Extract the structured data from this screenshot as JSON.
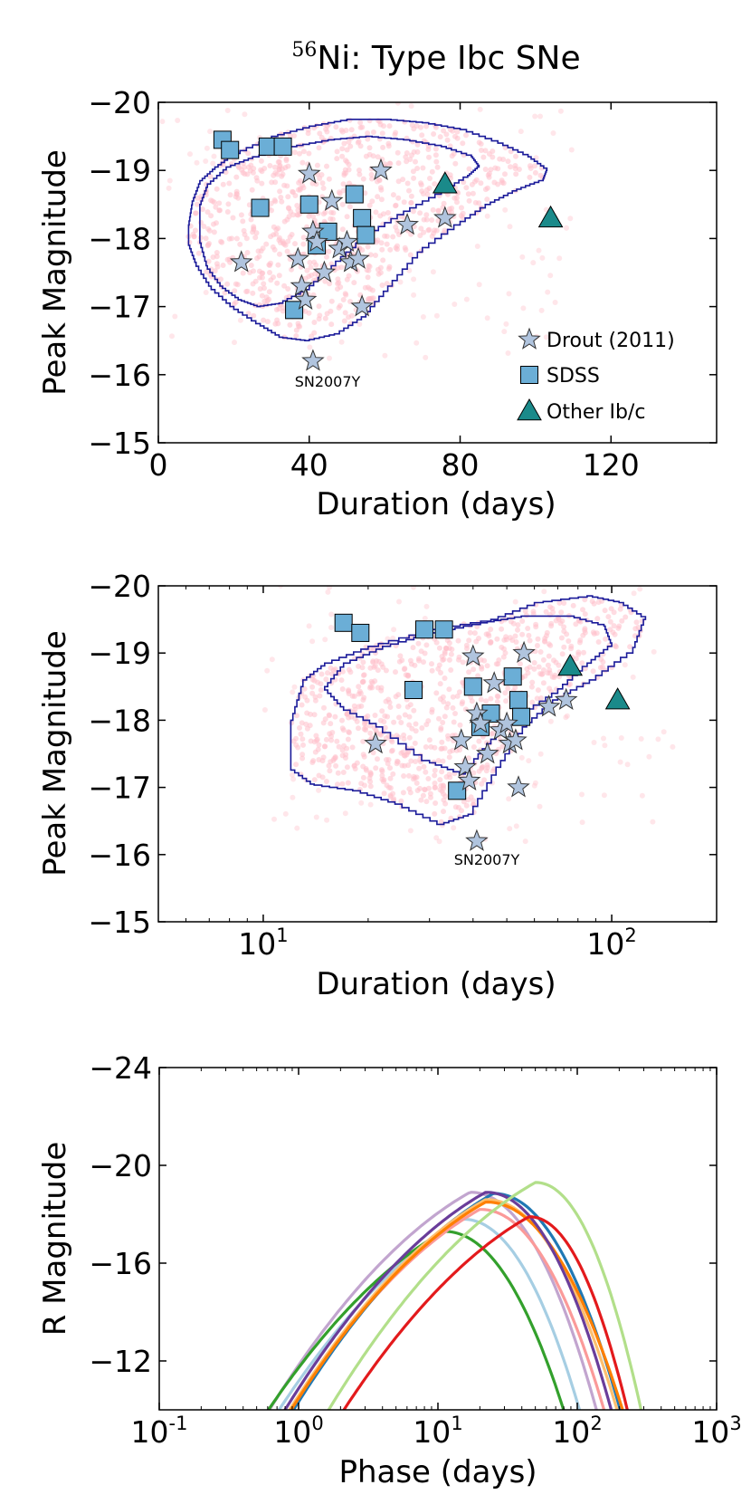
{
  "figure": {
    "title_prefix": "56",
    "title_text": "Ni: Type Ibc SNe"
  },
  "colors": {
    "sim": "#ffc0cb",
    "contour": "#1a1a99",
    "drout": "#b0c4de",
    "sdss": "#6baed6",
    "other": "#1a8a8a"
  },
  "chart_data": [
    {
      "type": "scatter",
      "name": "linear-duration-panel",
      "xlabel": "Duration (days)",
      "ylabel": "Peak Magnitude",
      "xlim": [
        0,
        148
      ],
      "ylim": [
        -15,
        -20
      ],
      "xticks": [
        0,
        40,
        80,
        120
      ],
      "yticks": [
        -20,
        -19,
        -18,
        -17,
        -16,
        -15
      ],
      "xscale": "linear",
      "legend": {
        "position": "bottom-right",
        "entries": [
          {
            "label": "Drout (2011)",
            "marker": "star"
          },
          {
            "label": "SDSS",
            "marker": "square"
          },
          {
            "label": "Other Ib/c",
            "marker": "triangle"
          }
        ]
      },
      "annotation": {
        "text": "SN2007Y",
        "x": 41,
        "y": -16.2
      },
      "contour_outer": [
        [
          8,
          -18.2
        ],
        [
          9,
          -18.55
        ],
        [
          11,
          -18.85
        ],
        [
          15,
          -19.05
        ],
        [
          20,
          -19.25
        ],
        [
          30,
          -19.5
        ],
        [
          40,
          -19.65
        ],
        [
          50,
          -19.75
        ],
        [
          60,
          -19.75
        ],
        [
          70,
          -19.7
        ],
        [
          80,
          -19.6
        ],
        [
          90,
          -19.4
        ],
        [
          98,
          -19.2
        ],
        [
          103,
          -19.0
        ],
        [
          102,
          -18.85
        ],
        [
          95,
          -18.7
        ],
        [
          88,
          -18.5
        ],
        [
          80,
          -18.2
        ],
        [
          70,
          -17.8
        ],
        [
          62,
          -17.3
        ],
        [
          55,
          -16.85
        ],
        [
          48,
          -16.6
        ],
        [
          40,
          -16.5
        ],
        [
          33,
          -16.55
        ],
        [
          27,
          -16.75
        ],
        [
          20,
          -17.0
        ],
        [
          14,
          -17.3
        ],
        [
          10,
          -17.65
        ],
        [
          8,
          -17.95
        ]
      ],
      "contour_inner": [
        [
          11,
          -18.5
        ],
        [
          13,
          -18.8
        ],
        [
          18,
          -19.05
        ],
        [
          25,
          -19.2
        ],
        [
          35,
          -19.35
        ],
        [
          45,
          -19.45
        ],
        [
          55,
          -19.5
        ],
        [
          65,
          -19.45
        ],
        [
          75,
          -19.35
        ],
        [
          83,
          -19.2
        ],
        [
          85,
          -19.05
        ],
        [
          82,
          -18.9
        ],
        [
          75,
          -18.65
        ],
        [
          65,
          -18.35
        ],
        [
          55,
          -18.0
        ],
        [
          47,
          -17.6
        ],
        [
          40,
          -17.25
        ],
        [
          33,
          -17.05
        ],
        [
          27,
          -17.0
        ],
        [
          22,
          -17.1
        ],
        [
          17,
          -17.3
        ],
        [
          13,
          -17.6
        ],
        [
          11,
          -18.0
        ]
      ],
      "drout": {
        "x": [
          22,
          37,
          38,
          39,
          40,
          41,
          42,
          44,
          46,
          48,
          50,
          51,
          53,
          54,
          59,
          66,
          76
        ],
        "y": [
          -17.65,
          -17.7,
          -17.3,
          -17.1,
          -18.95,
          -18.1,
          -17.95,
          -17.5,
          -18.55,
          -17.85,
          -17.95,
          -17.65,
          -17.7,
          -17.0,
          -19.0,
          -18.2,
          -18.3
        ]
      },
      "sdss": {
        "x": [
          17,
          19,
          27,
          29,
          33,
          40,
          42,
          45,
          52,
          54,
          55,
          36
        ],
        "y": [
          -19.45,
          -19.3,
          -18.45,
          -19.35,
          -19.35,
          -18.5,
          -17.9,
          -18.1,
          -18.65,
          -18.3,
          -18.05,
          -16.95
        ]
      },
      "other": {
        "x": [
          76,
          104
        ],
        "y": [
          -18.8,
          -18.3
        ]
      }
    },
    {
      "type": "scatter",
      "name": "log-duration-panel",
      "xlabel": "Duration (days)",
      "ylabel": "Peak Magnitude",
      "xlim": [
        5,
        200
      ],
      "ylim": [
        -15,
        -20
      ],
      "xticks": [
        10,
        100
      ],
      "xticklabels": [
        {
          "base": "10",
          "exp": "1"
        },
        {
          "base": "10",
          "exp": "2"
        }
      ],
      "yticks": [
        -20,
        -19,
        -18,
        -17,
        -16,
        -15
      ],
      "xscale": "log",
      "annotation": {
        "text": "SN2007Y",
        "x": 41,
        "y": -16.2
      },
      "contour_outer": [
        [
          12,
          -17.3
        ],
        [
          12,
          -18.0
        ],
        [
          13,
          -18.6
        ],
        [
          15,
          -18.85
        ],
        [
          20,
          -19.1
        ],
        [
          30,
          -19.35
        ],
        [
          45,
          -19.5
        ],
        [
          60,
          -19.75
        ],
        [
          85,
          -19.85
        ],
        [
          105,
          -19.75
        ],
        [
          125,
          -19.5
        ],
        [
          115,
          -19.0
        ],
        [
          90,
          -18.6
        ],
        [
          70,
          -18.3
        ],
        [
          57,
          -17.9
        ],
        [
          48,
          -17.3
        ],
        [
          40,
          -16.6
        ],
        [
          33,
          -16.45
        ],
        [
          25,
          -16.75
        ],
        [
          19,
          -16.95
        ],
        [
          14,
          -17.05
        ]
      ],
      "contour_inner": [
        [
          15,
          -18.5
        ],
        [
          17,
          -18.85
        ],
        [
          22,
          -19.1
        ],
        [
          30,
          -19.3
        ],
        [
          42,
          -19.45
        ],
        [
          55,
          -19.55
        ],
        [
          75,
          -19.55
        ],
        [
          95,
          -19.4
        ],
        [
          100,
          -19.1
        ],
        [
          85,
          -18.8
        ],
        [
          70,
          -18.4
        ],
        [
          55,
          -18.05
        ],
        [
          45,
          -17.65
        ],
        [
          38,
          -17.2
        ],
        [
          30,
          -17.4
        ],
        [
          22,
          -17.9
        ],
        [
          17,
          -18.2
        ]
      ],
      "drout": {
        "x": [
          21,
          37,
          38,
          39,
          40,
          41,
          42,
          44,
          46,
          48,
          50,
          51,
          53,
          54,
          56,
          66,
          74
        ],
        "y": [
          -17.65,
          -17.7,
          -17.3,
          -17.1,
          -18.95,
          -18.1,
          -17.95,
          -17.5,
          -18.55,
          -17.85,
          -17.95,
          -17.65,
          -17.7,
          -17.0,
          -19.0,
          -18.2,
          -18.3
        ]
      },
      "sdss": {
        "x": [
          17,
          19,
          27,
          29,
          33,
          40,
          42,
          45,
          52,
          54,
          55,
          36
        ],
        "y": [
          -19.45,
          -19.3,
          -18.45,
          -19.35,
          -19.35,
          -18.5,
          -17.9,
          -18.1,
          -18.65,
          -18.3,
          -18.05,
          -16.95
        ]
      },
      "other": {
        "x": [
          76,
          104
        ],
        "y": [
          -18.8,
          -18.3
        ]
      }
    },
    {
      "type": "line",
      "name": "lightcurve-panel",
      "xlabel": "Phase (days)",
      "ylabel": "R Magnitude",
      "xlim": [
        0.1,
        1000
      ],
      "ylim": [
        -10,
        -24
      ],
      "xticks": [
        0.1,
        1,
        10,
        100,
        1000
      ],
      "xticklabels": [
        {
          "base": "10",
          "exp": "-1"
        },
        {
          "base": "10",
          "exp": "0"
        },
        {
          "base": "10",
          "exp": "1"
        },
        {
          "base": "10",
          "exp": "2"
        },
        {
          "base": "10",
          "exp": "3"
        }
      ],
      "yticks": [
        -24,
        -20,
        -16,
        -12
      ],
      "xscale": "log",
      "series": [
        {
          "name": "light purple",
          "color": "#c2a5cf",
          "peak_phase": 17,
          "peak_mag": -18.9,
          "end_phase": 145
        },
        {
          "name": "light blue",
          "color": "#a6cee3",
          "peak_phase": 15,
          "peak_mag": -17.8,
          "end_phase": 110
        },
        {
          "name": "dark green",
          "color": "#33a02c",
          "peak_phase": 11,
          "peak_mag": -17.3,
          "end_phase": 85
        },
        {
          "name": "pink",
          "color": "#fb9a99",
          "peak_phase": 20,
          "peak_mag": -18.2,
          "end_phase": 165
        },
        {
          "name": "blue",
          "color": "#1f78b4",
          "peak_phase": 25,
          "peak_mag": -18.85,
          "end_phase": 215
        },
        {
          "name": "light orange",
          "color": "#fdbf6f",
          "peak_phase": 22,
          "peak_mag": -18.6,
          "end_phase": 205
        },
        {
          "name": "orange",
          "color": "#ff7f00",
          "peak_phase": 22,
          "peak_mag": -18.5,
          "end_phase": 225
        },
        {
          "name": "purple",
          "color": "#6a3d9a",
          "peak_phase": 22,
          "peak_mag": -18.9,
          "end_phase": 185
        },
        {
          "name": "red",
          "color": "#e31a1c",
          "peak_phase": 45,
          "peak_mag": -17.9,
          "end_phase": 240
        },
        {
          "name": "light green",
          "color": "#b2df8a",
          "peak_phase": 50,
          "peak_mag": -19.3,
          "end_phase": 300
        }
      ]
    }
  ]
}
